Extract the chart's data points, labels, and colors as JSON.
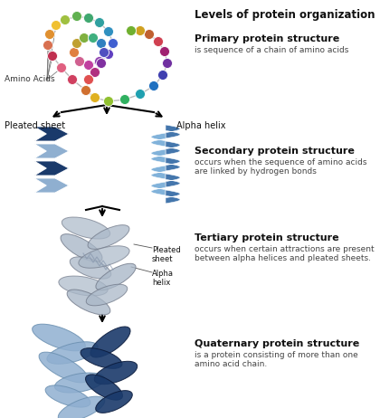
{
  "title": "Levels of protein organization",
  "sections": [
    {
      "name": "Primary protein structure",
      "desc": "is sequence of a chain of amino acids"
    },
    {
      "name": "Secondary protein structure",
      "desc": "occurs when the sequence of amino acids\nare linked by hydrogen bonds",
      "label_left": "Pleated sheet",
      "label_right": "Alpha helix"
    },
    {
      "name": "Tertiary protein structure",
      "desc": "occurs when certain attractions are present\nbetween alpha helices and pleated sheets.",
      "label_inner1": "Pleated\nsheet",
      "label_inner2": "Alpha\nhelix"
    },
    {
      "name": "Quaternary protein structure",
      "desc": "is a protein consisting of more than one\namino acid chain."
    }
  ],
  "bg_color": "#ffffff",
  "text_color": "#000000",
  "bead_colors": [
    "#e8a0b0",
    "#d04060",
    "#e06080",
    "#c03050",
    "#d87050",
    "#e09030",
    "#f0c030",
    "#a0c040",
    "#60b050",
    "#40a870",
    "#30a0a0",
    "#3090c0",
    "#4060d0",
    "#6040c0",
    "#9040b0",
    "#c040a0",
    "#d06090",
    "#e08040",
    "#c0a030",
    "#80b040",
    "#40b080",
    "#3080c0",
    "#5050c0",
    "#8030a0",
    "#b03080",
    "#e05050",
    "#d07030",
    "#e0b020",
    "#90c030",
    "#30b060",
    "#20a0b0",
    "#2070c0",
    "#4040b0",
    "#7030a0",
    "#a02070",
    "#d04050",
    "#c06030",
    "#d0a020",
    "#70b030",
    "#20a060"
  ],
  "dark_blue": "#1a3a6b",
  "mid_blue": "#4a6fa5",
  "light_blue": "#8fafd0",
  "helix_blue": "#3a6fa8",
  "helix_light": "#7aaed8",
  "sheet_dark": "#1a3a6b",
  "sheet_light": "#8fafd0",
  "grey_blue": "#8090a8",
  "grey_light": "#aab8c8"
}
